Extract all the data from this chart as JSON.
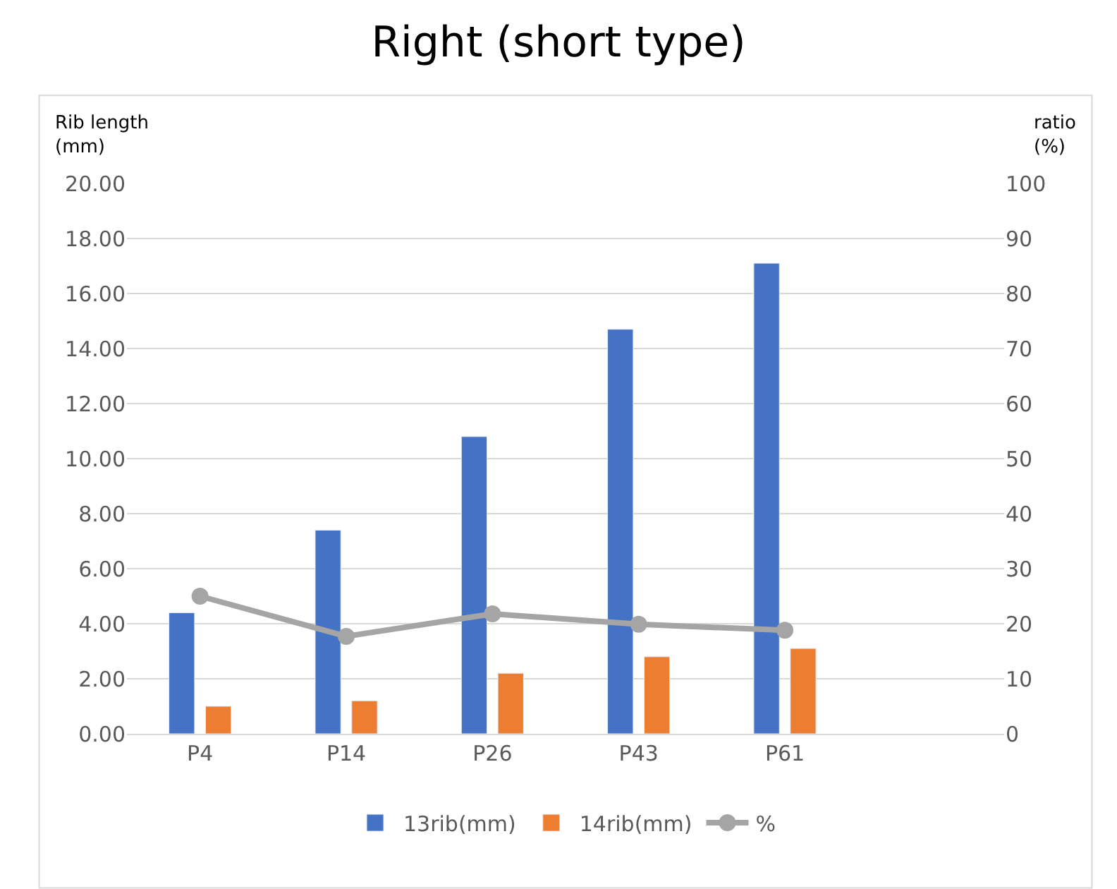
{
  "chart_data": {
    "type": "bar",
    "title": "Right (short type)",
    "ylabel": "Rib length\n(mm)",
    "y2label": "ratio\n(%)",
    "categories": [
      "P4",
      "P14",
      "P26",
      "P43",
      "P61",
      null
    ],
    "series": [
      {
        "name": "13rib(mm)",
        "color": "#4472c4",
        "values": [
          4.4,
          7.4,
          10.8,
          14.7,
          17.1,
          null
        ]
      },
      {
        "name": "14rib(mm)",
        "color": "#ed7d31",
        "values": [
          1.0,
          1.2,
          2.2,
          2.8,
          3.1,
          null
        ]
      },
      {
        "name": "%",
        "type": "line",
        "axis": "y2",
        "color": "#a5a5a5",
        "marker": "circle",
        "values": [
          25,
          17.7,
          21.8,
          19.9,
          18.8,
          null
        ]
      }
    ],
    "ylim": [
      0,
      20
    ],
    "yticks": [
      {
        "value": 0,
        "label": "0.00"
      },
      {
        "value": 2,
        "label": "2.00"
      },
      {
        "value": 4,
        "label": "4.00"
      },
      {
        "value": 6,
        "label": "6.00"
      },
      {
        "value": 8,
        "label": "8.00"
      },
      {
        "value": 10,
        "label": "10.00"
      },
      {
        "value": 12,
        "label": "12.00"
      },
      {
        "value": 14,
        "label": "14.00"
      },
      {
        "value": 16,
        "label": "16.00"
      },
      {
        "value": 18,
        "label": "18.00"
      },
      {
        "value": 20,
        "label": "20.00"
      }
    ],
    "y2lim": [
      0,
      100
    ],
    "y2ticks": [
      0,
      10,
      20,
      30,
      40,
      50,
      60,
      70,
      80,
      90,
      100
    ],
    "grid": "y",
    "legend": "bottom"
  }
}
